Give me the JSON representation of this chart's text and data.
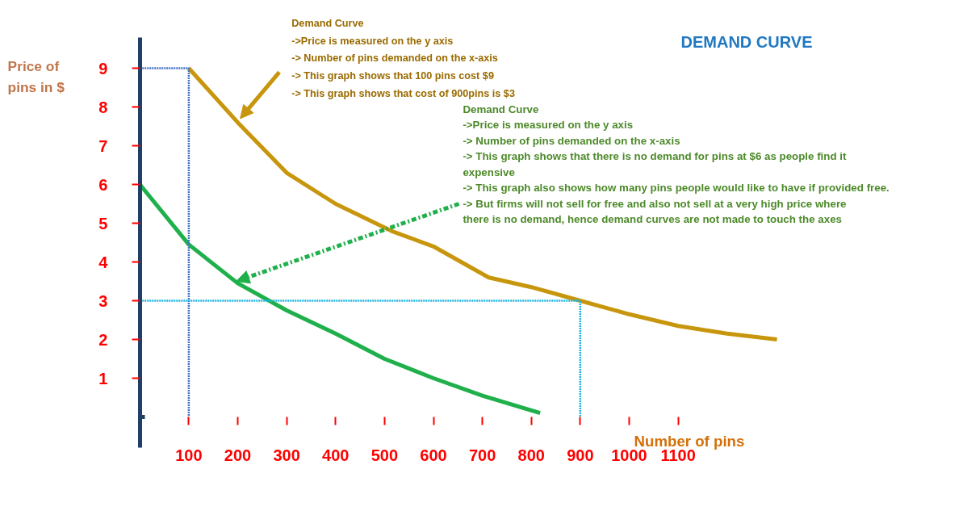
{
  "chart_data": {
    "type": "line",
    "title": "DEMAND CURVE",
    "xlabel": "Number of pins",
    "ylabel": "Price of pins in $",
    "xlim": [
      -285,
      1645
    ],
    "ylim": [
      -1.75,
      10.75
    ],
    "xticks": [
      100,
      200,
      300,
      400,
      500,
      600,
      700,
      800,
      900,
      1000,
      1100
    ],
    "yticks": [
      1,
      2,
      3,
      4,
      5,
      6,
      7,
      8,
      9
    ],
    "grid": false,
    "marker": "none",
    "series": [
      {
        "color": "#c8960c",
        "x": [
          100,
          200,
          300,
          400,
          514,
          600,
          713,
          800,
          900,
          1000,
          1100,
          1200,
          1302
        ],
        "values": [
          9,
          7.6,
          6.3,
          5.5,
          4.8,
          4.4,
          3.6,
          3.35,
          3.0,
          2.65,
          2.35,
          2.15,
          2.0
        ]
      },
      {
        "color": "#1fb04b",
        "x": [
          0,
          100,
          200,
          300,
          400,
          500,
          600,
          700,
          818
        ],
        "values": [
          6,
          4.45,
          3.45,
          2.75,
          2.15,
          1.5,
          1.0,
          0.55,
          0.1
        ]
      },
      {
        "color": "#4472c4",
        "line_style": "dotted",
        "x": [
          0,
          100,
          100
        ],
        "values": [
          9,
          9,
          0
        ]
      },
      {
        "color": "#1fb4e0",
        "line_style": "dotted",
        "x": [
          0,
          900,
          900
        ],
        "values": [
          3,
          3,
          0
        ]
      }
    ],
    "annotations": [
      {
        "text": "Demand Curve\n->Price is measured on the y axis\n-> Number of pins demanded on the x-axis\n-> This graph shows that 100 pins cost $9\n-> This graph shows that cost of 900pins is $3",
        "x": 205,
        "y": 7.7
      },
      {
        "text": "Demand Curve\n->Price is measured on the y axis\n-> Number of pins demanded on the x-axis\n-> This graph shows that there is no demand for pins at $6 as people find it expensive\n-> This graph also shows how many pins people would like to have if provided free.\n-> But firms will not sell for free and also not sell at a very high price where there is no demand, hence demand curves are not made to touch the axes",
        "x": 197,
        "y": 3.5
      }
    ]
  }
}
